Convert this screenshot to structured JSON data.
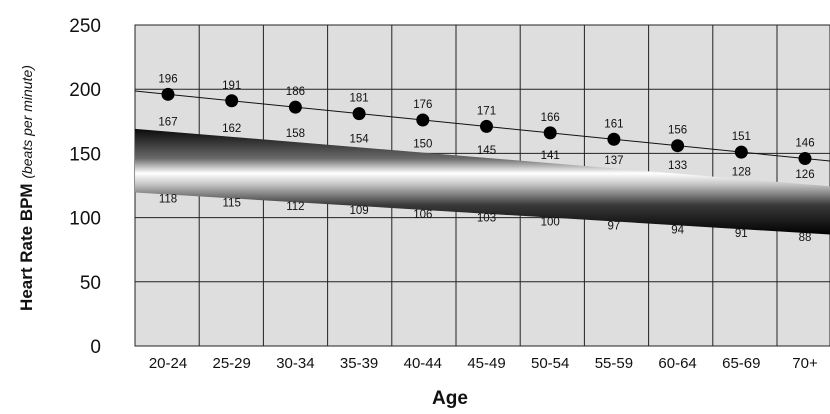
{
  "chart_data": {
    "type": "line",
    "categories": [
      "20-24",
      "25-29",
      "30-34",
      "35-39",
      "40-44",
      "45-49",
      "50-54",
      "55-59",
      "60-64",
      "65-69",
      "70+"
    ],
    "series": [
      {
        "values": [
          196,
          191,
          186,
          181,
          176,
          171,
          166,
          161,
          156,
          151,
          146
        ]
      },
      {
        "values": [
          167,
          162,
          158,
          154,
          150,
          145,
          141,
          137,
          133,
          128,
          126
        ]
      },
      {
        "values": [
          118,
          115,
          112,
          109,
          106,
          103,
          100,
          97,
          94,
          91,
          88
        ]
      }
    ],
    "xlabel": "Age",
    "ylabel_bold": "Heart Rate BPM",
    "ylabel_italic": "(beats per minute)",
    "ylim": [
      0,
      250
    ],
    "yticks": [
      "0",
      "50",
      "100",
      "150",
      "200",
      "250"
    ],
    "grid": true,
    "colors": {
      "plot_bg": "#dedede",
      "grid": "#222222",
      "marker": "#000000"
    }
  }
}
